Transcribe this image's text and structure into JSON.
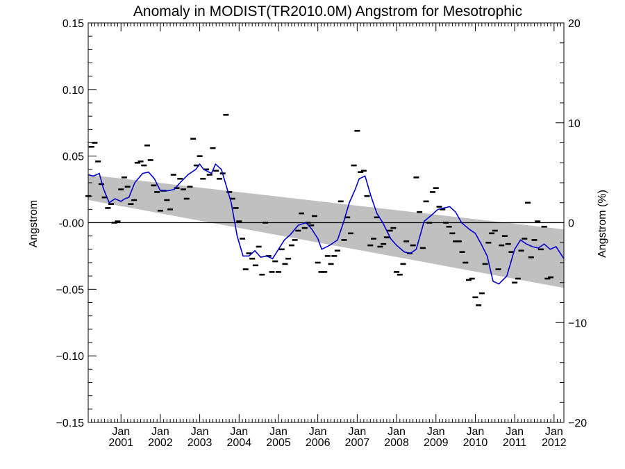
{
  "chart_data": {
    "type": "scatter",
    "title": "Anomaly in MODIST(TR2010.0M) Angstrom for Mesotrophic",
    "ylabel": "Angstrom",
    "y2label": "Angstrom (%)",
    "xlim": [
      2000.167,
      2012.25
    ],
    "ylim": [
      -0.15,
      0.15
    ],
    "y2lim": [
      -20,
      20
    ],
    "y_ticks": [
      {
        "value": 0.15,
        "label": "0.15"
      },
      {
        "value": 0.1,
        "label": "0.10"
      },
      {
        "value": 0.05,
        "label": "0.05"
      },
      {
        "value": 0.0,
        "label": "-0.00"
      },
      {
        "value": -0.05,
        "label": "−0.05"
      },
      {
        "value": -0.1,
        "label": "−0.10"
      },
      {
        "value": -0.15,
        "label": "−0.15"
      }
    ],
    "y2_ticks": [
      {
        "value": 20,
        "label": "20"
      },
      {
        "value": 10,
        "label": "10"
      },
      {
        "value": 0,
        "label": "0"
      },
      {
        "value": -10,
        "label": "−10"
      },
      {
        "value": -20,
        "label": "−20"
      }
    ],
    "x_ticks": [
      {
        "value": 2001,
        "month": "Jan",
        "year": "2001"
      },
      {
        "value": 2002,
        "month": "Jan",
        "year": "2002"
      },
      {
        "value": 2003,
        "month": "Jan",
        "year": "2003"
      },
      {
        "value": 2004,
        "month": "Jan",
        "year": "2004"
      },
      {
        "value": 2005,
        "month": "Jan",
        "year": "2005"
      },
      {
        "value": 2006,
        "month": "Jan",
        "year": "2006"
      },
      {
        "value": 2007,
        "month": "Jan",
        "year": "2007"
      },
      {
        "value": 2008,
        "month": "Jan",
        "year": "2008"
      },
      {
        "value": 2009,
        "month": "Jan",
        "year": "2009"
      },
      {
        "value": 2010,
        "month": "Jan",
        "year": "2010"
      },
      {
        "value": 2011,
        "month": "Jan",
        "year": "2011"
      },
      {
        "value": 2012,
        "month": "Jan",
        "year": "2012"
      }
    ],
    "trend_band": {
      "upper": [
        [
          2000.167,
          0.036
        ],
        [
          2012.25,
          -0.005
        ]
      ],
      "lower": [
        [
          2000.167,
          0.017
        ],
        [
          2012.25,
          -0.049
        ]
      ]
    },
    "zero_line": 0.0,
    "colors": {
      "smooth": "#0000cc",
      "band": "#c0c0c0",
      "points": "#000000"
    },
    "monthly_anomalies": {
      "start": "2000-03",
      "values": [
        0.02,
        0.057,
        0.06,
        0.046,
        0.029,
        0.019,
        0.011,
        0.014,
        0.0,
        0.001,
        0.025,
        0.034,
        0.027,
        0.014,
        0.017,
        0.045,
        0.046,
        0.043,
        0.058,
        0.047,
        0.028,
        0.023,
        0.009,
        0.024,
        0.017,
        0.01,
        0.036,
        0.026,
        0.033,
        0.025,
        0.018,
        0.027,
        0.063,
        0.043,
        0.05,
        0.033,
        0.04,
        0.036,
        0.056,
        0.039,
        0.033,
        0.037,
        0.081,
        0.023,
        0.018,
        0.011,
        0.001,
        -0.012,
        -0.035,
        -0.023,
        -0.027,
        -0.032,
        -0.018,
        -0.039,
        0.0,
        -0.025,
        -0.037,
        -0.029,
        -0.037,
        -0.02,
        -0.031,
        -0.027,
        -0.017,
        -0.013,
        -0.006,
        0.007,
        -0.004,
        0.0,
        -0.002,
        0.005,
        -0.03,
        -0.037,
        -0.037,
        -0.025,
        -0.031,
        -0.025,
        -0.021,
        0.016,
        -0.013,
        0.004,
        -0.008,
        0.043,
        0.069,
        0.038,
        0.039,
        0.02,
        -0.017,
        -0.012,
        0.004,
        -0.018,
        -0.016,
        -0.011,
        -0.006,
        -0.004,
        -0.037,
        -0.039,
        -0.031,
        -0.014,
        -0.023,
        -0.017,
        0.034,
        0.008,
        -0.019,
        0.016,
        0.0,
        0.023,
        0.026,
        0.012,
        0.01,
        0.0,
        -0.003,
        -0.008,
        -0.014,
        -0.014,
        -0.022,
        -0.03,
        -0.043,
        -0.042,
        -0.056,
        -0.062,
        -0.053,
        -0.031,
        -0.015,
        -0.008,
        -0.006,
        -0.035,
        -0.017,
        -0.01,
        -0.016,
        -0.022,
        -0.045,
        -0.042,
        -0.021,
        -0.012,
        0.015,
        -0.026,
        -0.013,
        0.001,
        -0.02,
        -0.003,
        -0.042,
        -0.041
      ]
    },
    "smoothed_series": {
      "x": [
        2000.17,
        2000.3,
        2000.45,
        2000.55,
        2000.7,
        2000.85,
        2001.0,
        2001.1,
        2001.2,
        2001.35,
        2001.55,
        2001.7,
        2001.85,
        2002.0,
        2002.2,
        2002.35,
        2002.5,
        2002.7,
        2002.9,
        2003.0,
        2003.1,
        2003.3,
        2003.4,
        2003.55,
        2003.65,
        2003.8,
        2003.95,
        2004.1,
        2004.25,
        2004.4,
        2004.55,
        2004.7,
        2004.85,
        2005.0,
        2005.15,
        2005.3,
        2005.5,
        2005.7,
        2005.85,
        2006.0,
        2006.1,
        2006.3,
        2006.5,
        2006.65,
        2006.8,
        2006.95,
        2007.05,
        2007.2,
        2007.35,
        2007.5,
        2007.65,
        2007.85,
        2008.0,
        2008.2,
        2008.35,
        2008.5,
        2008.7,
        2008.9,
        2009.05,
        2009.2,
        2009.35,
        2009.5,
        2009.65,
        2009.85,
        2010.0,
        2010.15,
        2010.3,
        2010.45,
        2010.6,
        2010.8,
        2011.0,
        2011.15,
        2011.3,
        2011.45,
        2011.6,
        2011.75,
        2011.9,
        2012.05,
        2012.25
      ],
      "y": [
        0.036,
        0.035,
        0.037,
        0.026,
        0.015,
        0.018,
        0.016,
        0.018,
        0.019,
        0.03,
        0.037,
        0.038,
        0.033,
        0.024,
        0.024,
        0.025,
        0.03,
        0.036,
        0.04,
        0.044,
        0.04,
        0.037,
        0.044,
        0.04,
        0.03,
        0.015,
        -0.01,
        -0.025,
        -0.025,
        -0.021,
        -0.026,
        -0.025,
        -0.027,
        -0.02,
        -0.013,
        -0.009,
        -0.002,
        0.0,
        -0.005,
        -0.012,
        -0.02,
        -0.017,
        -0.013,
        0.0,
        0.015,
        0.025,
        0.033,
        0.035,
        0.02,
        0.007,
        0.0,
        -0.012,
        -0.017,
        -0.022,
        -0.023,
        -0.02,
        0.001,
        0.006,
        0.01,
        0.011,
        0.012,
        0.008,
        0.0,
        -0.005,
        -0.008,
        -0.016,
        -0.025,
        -0.044,
        -0.046,
        -0.04,
        -0.02,
        -0.013,
        -0.016,
        -0.018,
        -0.019,
        -0.016,
        -0.02,
        -0.018,
        -0.027
      ]
    }
  }
}
